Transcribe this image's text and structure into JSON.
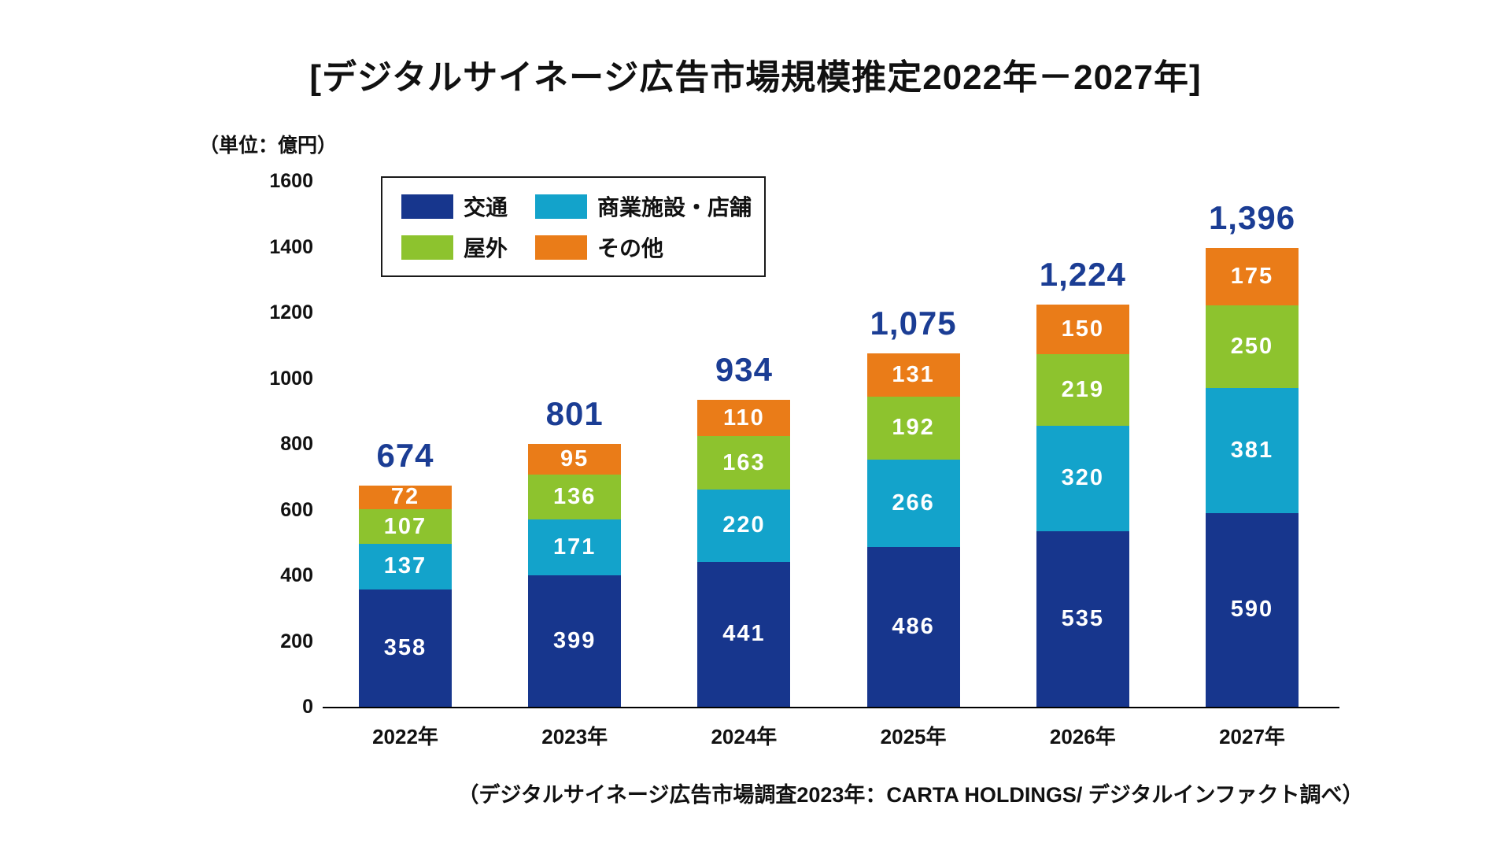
{
  "page": {
    "title": "[デジタルサイネージ広告市場規模推定2022年－2027年]",
    "unit_label": "（単位：億円）",
    "source_note": "（デジタルサイネージ広告市場調査2023年：CARTA HOLDINGS/ デジタルインファクト調べ）"
  },
  "colors": {
    "traffic": "#17368d",
    "commercial": "#13a3cb",
    "outdoor": "#8dc32e",
    "other": "#ea7c18",
    "total_label": "#1b3d94",
    "segment_label": "#ffffff",
    "axis": "#000000",
    "text": "#111111"
  },
  "chart_data": {
    "type": "bar",
    "stacked": true,
    "title": "[デジタルサイネージ広告市場規模推定2022年－2027年]",
    "unit": "億円",
    "categories": [
      "2022年",
      "2023年",
      "2024年",
      "2025年",
      "2026年",
      "2027年"
    ],
    "series": [
      {
        "name": "交通",
        "key": "traffic",
        "values": [
          358,
          399,
          441,
          486,
          535,
          590
        ]
      },
      {
        "name": "商業施設・店舗",
        "key": "commercial",
        "values": [
          137,
          171,
          220,
          266,
          320,
          381
        ]
      },
      {
        "name": "屋外",
        "key": "outdoor",
        "values": [
          107,
          136,
          163,
          192,
          219,
          250
        ]
      },
      {
        "name": "その他",
        "key": "other",
        "values": [
          72,
          95,
          110,
          131,
          150,
          175
        ]
      }
    ],
    "totals": [
      674,
      801,
      934,
      1075,
      1224,
      1396
    ],
    "totals_formatted": [
      "674",
      "801",
      "934",
      "1,075",
      "1,224",
      "1,396"
    ],
    "y_ticks": [
      0,
      200,
      400,
      600,
      800,
      1000,
      1200,
      1400,
      1600
    ],
    "ylim": [
      0,
      1600
    ],
    "grid": false,
    "legend_position": "top-left-inside"
  }
}
